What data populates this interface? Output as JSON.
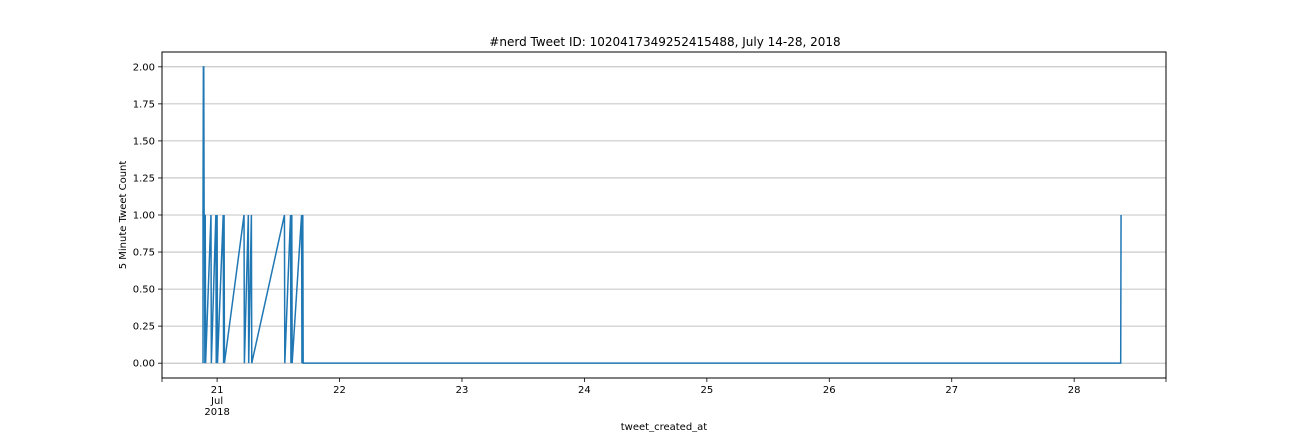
{
  "chart_data": {
    "type": "line",
    "title": "#nerd Tweet ID: 1020417349252415488, July 14-28, 2018",
    "xlabel": "tweet_created_at",
    "ylabel": "5 Minute Tweet Count",
    "x_unit": "day of July 2018",
    "xlim": [
      20.55,
      28.75
    ],
    "ylim": [
      -0.1,
      2.1
    ],
    "grid": "y",
    "y_ticks": [
      "0.00",
      "0.25",
      "0.50",
      "0.75",
      "1.00",
      "1.25",
      "1.50",
      "1.75",
      "2.00"
    ],
    "x_ticks": [
      {
        "value": 21,
        "label": "21",
        "sub1": "Jul",
        "sub2": "2018"
      },
      {
        "value": 22,
        "label": "22"
      },
      {
        "value": 23,
        "label": "23"
      },
      {
        "value": 24,
        "label": "24"
      },
      {
        "value": 25,
        "label": "25"
      },
      {
        "value": 26,
        "label": "26"
      },
      {
        "value": 27,
        "label": "27"
      },
      {
        "value": 28,
        "label": "28"
      }
    ],
    "line_color": "#1f77b4",
    "series": [
      {
        "x": [
          20.885,
          20.888,
          20.891,
          20.894,
          20.897,
          20.9,
          20.903,
          20.906,
          20.95,
          20.953,
          20.99,
          20.993,
          21.0,
          21.003,
          21.05,
          21.053,
          21.057,
          21.06,
          21.22,
          21.223,
          21.255,
          21.258,
          21.28,
          21.283,
          21.55,
          21.553,
          21.6,
          21.603,
          21.61,
          21.613,
          21.69,
          21.693,
          21.7,
          21.703,
          28.38,
          28.383
        ],
        "y": [
          1,
          2,
          2,
          1,
          1,
          0,
          1,
          0,
          1,
          0,
          1,
          0,
          1,
          0,
          1,
          0,
          1,
          0,
          1,
          0,
          1,
          0,
          1,
          0,
          1,
          0,
          1,
          0,
          1,
          0,
          1,
          0,
          1,
          0,
          0,
          1
        ]
      }
    ]
  }
}
